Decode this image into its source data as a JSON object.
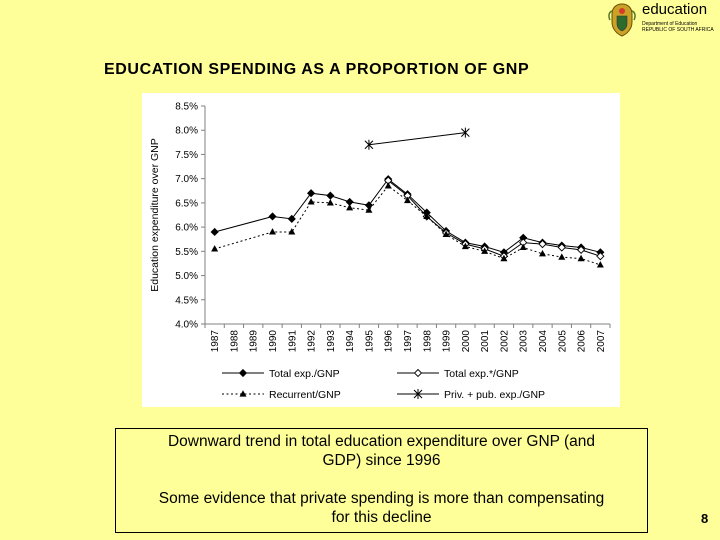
{
  "header": {
    "logo_brand": "education",
    "logo_line1": "Department of Education",
    "logo_line2": "REPUBLIC OF SOUTH AFRICA",
    "logo_line3": ""
  },
  "slide_title": "EDUCATION SPENDING AS A PROPORTION OF GNP",
  "chart_data": {
    "type": "line",
    "title": "",
    "ylabel": "Education expenditure over GNP",
    "xlabel": "",
    "ylim": [
      0.04,
      0.085
    ],
    "yticks": [
      "4.0%",
      "4.5%",
      "5.0%",
      "5.5%",
      "6.0%",
      "6.5%",
      "7.0%",
      "7.5%",
      "8.0%",
      "8.5%"
    ],
    "categories": [
      "1987",
      "1988",
      "1989",
      "1990",
      "1991",
      "1992",
      "1993",
      "1994",
      "1995",
      "1996",
      "1997",
      "1998",
      "1999",
      "2000",
      "2001",
      "2002",
      "2003",
      "2004",
      "2005",
      "2006",
      "2007"
    ],
    "grid": false,
    "legend_position": "bottom",
    "series": [
      {
        "name": "Total exp./GNP",
        "marker": "diamond-filled",
        "dash": "solid",
        "values": [
          0.059,
          null,
          null,
          0.0622,
          0.0617,
          0.067,
          0.0665,
          0.0652,
          0.0645,
          0.0699,
          0.0668,
          0.063,
          0.0592,
          0.0568,
          0.056,
          0.0548,
          0.0578,
          0.0568,
          0.0562,
          0.0558,
          0.0548
        ]
      },
      {
        "name": "Total exp.*/GNP",
        "marker": "diamond-open",
        "dash": "solid",
        "values": [
          null,
          null,
          null,
          null,
          null,
          null,
          null,
          null,
          null,
          0.0696,
          0.0665,
          0.0622,
          0.0588,
          0.0565,
          0.0555,
          0.054,
          0.0568,
          0.0565,
          0.0558,
          0.0553,
          0.054
        ]
      },
      {
        "name": "Recurrent/GNP",
        "marker": "triangle",
        "dash": "dotted",
        "values": [
          0.0555,
          null,
          null,
          0.059,
          0.059,
          0.0652,
          0.065,
          0.064,
          0.0635,
          0.0685,
          0.0655,
          0.0622,
          0.0585,
          0.056,
          0.055,
          0.0535,
          0.0558,
          0.0545,
          0.0538,
          0.0535,
          0.0522
        ]
      },
      {
        "name": "Priv. + pub. exp./GNP",
        "marker": "star",
        "dash": "solid",
        "values": [
          null,
          null,
          null,
          null,
          null,
          null,
          null,
          null,
          0.077,
          null,
          null,
          null,
          null,
          0.0795,
          null,
          null,
          null,
          null,
          null,
          null,
          null
        ]
      }
    ]
  },
  "textbox": {
    "line1": "Downward trend in total education expenditure over GNP (and",
    "line2": "GDP) since 1996",
    "line3": "Some evidence that private spending is more than compensating",
    "line4": "for this decline"
  },
  "page_number": "8"
}
